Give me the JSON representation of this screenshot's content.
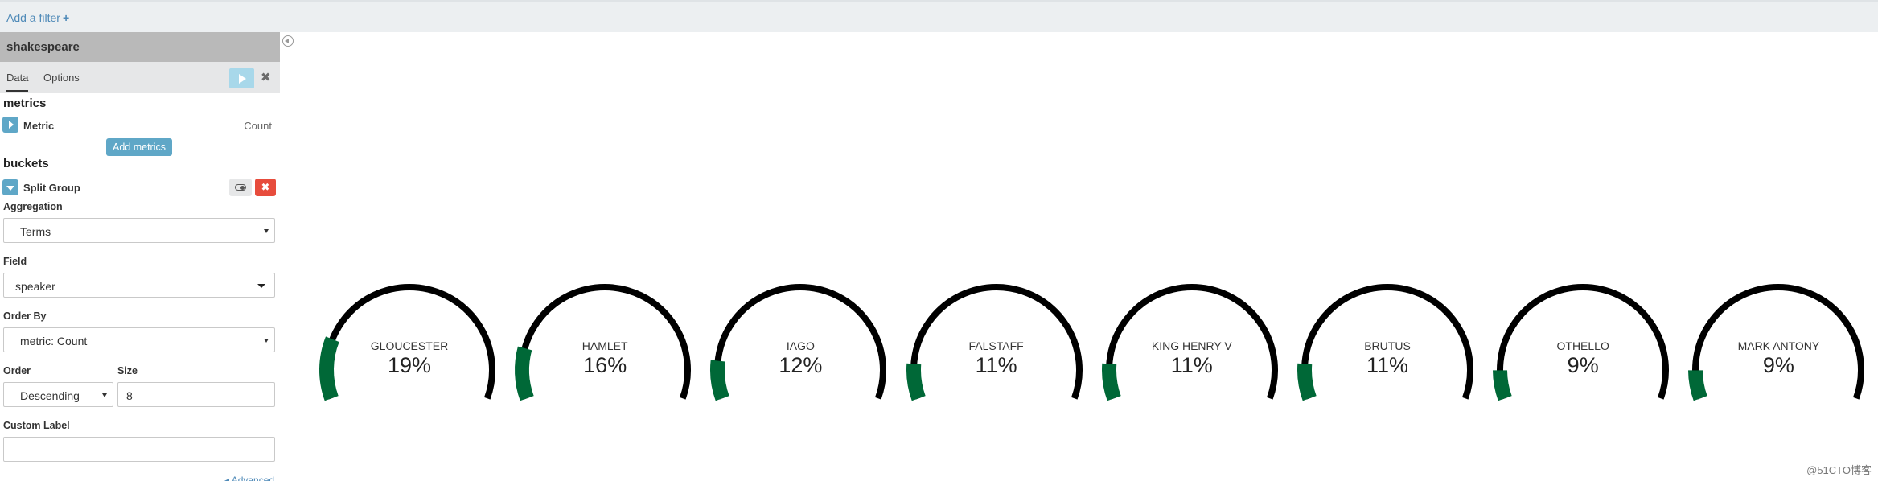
{
  "filter_bar": {
    "add_filter_label": "Add a filter",
    "add_filter_icon": "+"
  },
  "sidebar": {
    "index_title": "shakespeare",
    "tabs": [
      {
        "label": "Data"
      },
      {
        "label": "Options"
      }
    ],
    "discard_icon": "✖",
    "metrics": {
      "title": "metrics",
      "items": [
        {
          "name": "Metric",
          "description": "Count"
        }
      ],
      "add_button_label": "Add metrics"
    },
    "buckets": {
      "title": "buckets",
      "item_name": "Split Group",
      "remove_icon": "✖"
    },
    "form": {
      "aggregation_label": "Aggregation",
      "aggregation_value": "Terms",
      "field_label": "Field",
      "field_value": "speaker",
      "order_by_label": "Order By",
      "order_by_value": "metric: Count",
      "order_label": "Order",
      "order_value": "Descending",
      "size_label": "Size",
      "size_value": "8",
      "custom_label_label": "Custom Label",
      "custom_label_value": "",
      "advanced_link": "◂ Advanced"
    }
  },
  "colors": {
    "gauge_fill": "#006837",
    "gauge_track": "#000000",
    "accent": "#5fa7c7",
    "danger": "#e74c3c"
  },
  "chart_data": {
    "type": "gauge",
    "gauge_type": "arc",
    "range": [
      0,
      100
    ],
    "series": [
      {
        "label": "GLOUCESTER",
        "value": 19,
        "display": "19%"
      },
      {
        "label": "HAMLET",
        "value": 16,
        "display": "16%"
      },
      {
        "label": "IAGO",
        "value": 12,
        "display": "12%"
      },
      {
        "label": "FALSTAFF",
        "value": 11,
        "display": "11%"
      },
      {
        "label": "KING HENRY V",
        "value": 11,
        "display": "11%"
      },
      {
        "label": "BRUTUS",
        "value": 11,
        "display": "11%"
      },
      {
        "label": "OTHELLO",
        "value": 9,
        "display": "9%"
      },
      {
        "label": "MARK ANTONY",
        "value": 9,
        "display": "9%"
      }
    ]
  },
  "watermark": "@51CTO博客"
}
